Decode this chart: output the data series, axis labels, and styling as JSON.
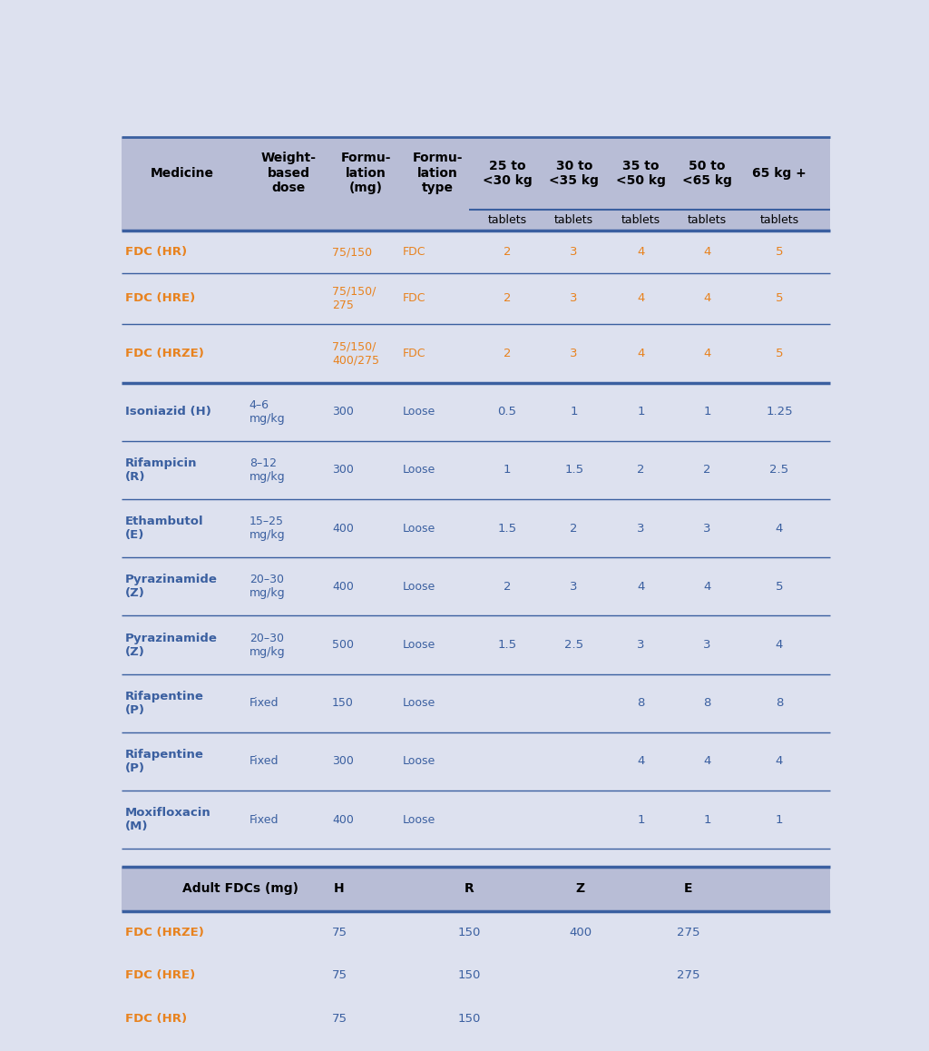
{
  "bg_color": "#dde1ef",
  "orange_color": "#e8821e",
  "blue_color": "#3a5fa0",
  "header_bg": "#b8bdd6",
  "separator_color": "#3a5fa0",
  "main_headers": [
    "Medicine",
    "Weight-\nbased\ndose",
    "Formu-\nlation\n(mg)",
    "Formu-\nlation\ntype",
    "25 to\n<30 kg",
    "30 to\n<35 kg",
    "35 to\n<50 kg",
    "50 to\n<65 kg",
    "65 kg +"
  ],
  "sub_header": [
    "",
    "",
    "",
    "",
    "tablets",
    "tablets",
    "tablets",
    "tablets",
    "tablets"
  ],
  "rows": [
    {
      "medicine": "FDC (HR)",
      "weight_dose": "",
      "formulation": "75/150",
      "form_type": "FDC",
      "values": [
        "2",
        "3",
        "4",
        "4",
        "5"
      ],
      "medicine_color": "orange",
      "values_color": "orange",
      "formulation_color": "orange",
      "type_color": "orange"
    },
    {
      "medicine": "FDC (HRE)",
      "weight_dose": "",
      "formulation": "75/150/\n275",
      "form_type": "FDC",
      "values": [
        "2",
        "3",
        "4",
        "4",
        "5"
      ],
      "medicine_color": "orange",
      "values_color": "orange",
      "formulation_color": "orange",
      "type_color": "orange"
    },
    {
      "medicine": "FDC (HRZE)",
      "weight_dose": "",
      "formulation": "75/150/\n400/275",
      "form_type": "FDC",
      "values": [
        "2",
        "3",
        "4",
        "4",
        "5"
      ],
      "medicine_color": "orange",
      "values_color": "orange",
      "formulation_color": "orange",
      "type_color": "orange"
    },
    {
      "medicine": "Isoniazid (H)",
      "weight_dose": "4–6\nmg/kg",
      "formulation": "300",
      "form_type": "Loose",
      "values": [
        "0.5",
        "1",
        "1",
        "1",
        "1.25"
      ],
      "medicine_color": "blue",
      "values_color": "blue",
      "formulation_color": "blue",
      "type_color": "blue"
    },
    {
      "medicine": "Rifampicin\n(R)",
      "weight_dose": "8–12\nmg/kg",
      "formulation": "300",
      "form_type": "Loose",
      "values": [
        "1",
        "1.5",
        "2",
        "2",
        "2.5"
      ],
      "medicine_color": "blue",
      "values_color": "blue",
      "formulation_color": "blue",
      "type_color": "blue"
    },
    {
      "medicine": "Ethambutol\n(E)",
      "weight_dose": "15–25\nmg/kg",
      "formulation": "400",
      "form_type": "Loose",
      "values": [
        "1.5",
        "2",
        "3",
        "3",
        "4"
      ],
      "medicine_color": "blue",
      "values_color": "blue",
      "formulation_color": "blue",
      "type_color": "blue"
    },
    {
      "medicine": "Pyrazinamide\n(Z)",
      "weight_dose": "20–30\nmg/kg",
      "formulation": "400",
      "form_type": "Loose",
      "values": [
        "2",
        "3",
        "4",
        "4",
        "5"
      ],
      "medicine_color": "blue",
      "values_color": "blue",
      "formulation_color": "blue",
      "type_color": "blue"
    },
    {
      "medicine": "Pyrazinamide\n(Z)",
      "weight_dose": "20–30\nmg/kg",
      "formulation": "500",
      "form_type": "Loose",
      "values": [
        "1.5",
        "2.5",
        "3",
        "3",
        "4"
      ],
      "medicine_color": "blue",
      "values_color": "blue",
      "formulation_color": "blue",
      "type_color": "blue"
    },
    {
      "medicine": "Rifapentine\n(P)",
      "weight_dose": "Fixed",
      "formulation": "150",
      "form_type": "Loose",
      "values": [
        "",
        "",
        "8",
        "8",
        "8"
      ],
      "medicine_color": "blue",
      "values_color": "blue",
      "formulation_color": "blue",
      "type_color": "blue"
    },
    {
      "medicine": "Rifapentine\n(P)",
      "weight_dose": "Fixed",
      "formulation": "300",
      "form_type": "Loose",
      "values": [
        "",
        "",
        "4",
        "4",
        "4"
      ],
      "medicine_color": "blue",
      "values_color": "blue",
      "formulation_color": "blue",
      "type_color": "blue"
    },
    {
      "medicine": "Moxifloxacin\n(M)",
      "weight_dose": "Fixed",
      "formulation": "400",
      "form_type": "Loose",
      "values": [
        "",
        "",
        "1",
        "1",
        "1"
      ],
      "medicine_color": "blue",
      "values_color": "blue",
      "formulation_color": "blue",
      "type_color": "blue"
    }
  ],
  "bottom_table": {
    "header": [
      "Adult FDCs (mg)",
      "H",
      "R",
      "Z",
      "E"
    ],
    "rows": [
      {
        "medicine": "FDC (HRZE)",
        "values": [
          "75",
          "150",
          "400",
          "275"
        ]
      },
      {
        "medicine": "FDC (HRE)",
        "values": [
          "75",
          "150",
          "",
          "275"
        ]
      },
      {
        "medicine": "FDC (HR)",
        "values": [
          "75",
          "150",
          "",
          ""
        ]
      }
    ]
  }
}
